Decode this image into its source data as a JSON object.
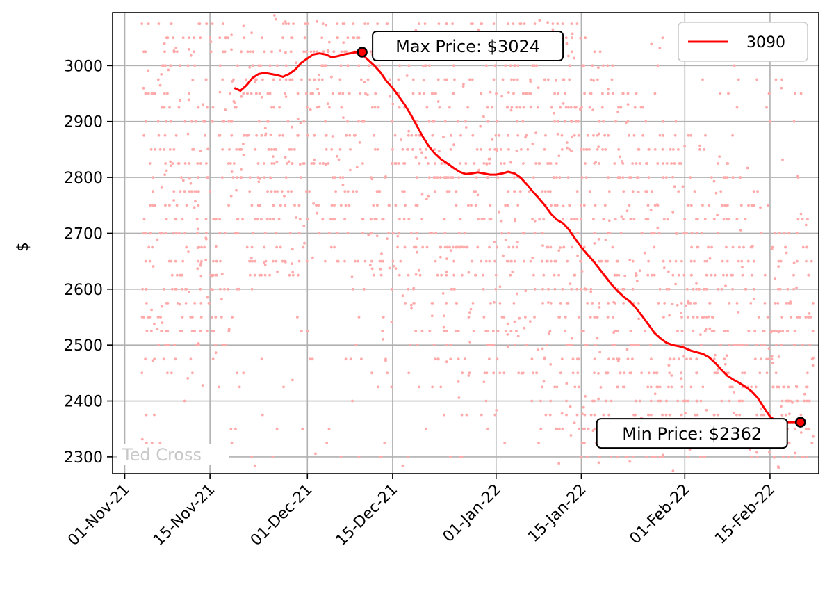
{
  "chart_data": {
    "type": "line",
    "ylabel": "$",
    "xlabel": "",
    "ylim": [
      2270,
      3095
    ],
    "xlim": [
      "2021-10-30",
      "2022-02-23"
    ],
    "x_ticks": [
      {
        "date": "2021-11-01",
        "label": "01-Nov-21"
      },
      {
        "date": "2021-11-15",
        "label": "15-Nov-21"
      },
      {
        "date": "2021-12-01",
        "label": "01-Dec-21"
      },
      {
        "date": "2021-12-15",
        "label": "15-Dec-21"
      },
      {
        "date": "2022-01-01",
        "label": "01-Jan-22"
      },
      {
        "date": "2022-01-15",
        "label": "15-Jan-22"
      },
      {
        "date": "2022-02-01",
        "label": "01-Feb-22"
      },
      {
        "date": "2022-02-15",
        "label": "15-Feb-22"
      }
    ],
    "y_ticks": [
      2300,
      2400,
      2500,
      2600,
      2700,
      2800,
      2900,
      3000
    ],
    "grid": true,
    "legend": {
      "placement": "top-right",
      "entries": [
        {
          "label": "3090",
          "color": "#ff0000"
        }
      ]
    },
    "watermark": "Ted Cross",
    "series": [
      {
        "name": "3090",
        "color": "#ff0000",
        "x": [
          "2021-11-19",
          "2021-11-20",
          "2021-11-21",
          "2021-11-22",
          "2021-11-23",
          "2021-11-24",
          "2021-11-25",
          "2021-11-26",
          "2021-11-27",
          "2021-11-28",
          "2021-11-29",
          "2021-11-30",
          "2021-12-01",
          "2021-12-02",
          "2021-12-03",
          "2021-12-04",
          "2021-12-05",
          "2021-12-06",
          "2021-12-07",
          "2021-12-08",
          "2021-12-09",
          "2021-12-10",
          "2021-12-11",
          "2021-12-12",
          "2021-12-13",
          "2021-12-14",
          "2021-12-15",
          "2021-12-16",
          "2021-12-17",
          "2021-12-18",
          "2021-12-19",
          "2021-12-20",
          "2021-12-21",
          "2021-12-22",
          "2021-12-23",
          "2021-12-24",
          "2021-12-25",
          "2021-12-26",
          "2021-12-27",
          "2021-12-28",
          "2021-12-29",
          "2021-12-30",
          "2021-12-31",
          "2022-01-01",
          "2022-01-02",
          "2022-01-03",
          "2022-01-04",
          "2022-01-05",
          "2022-01-06",
          "2022-01-07",
          "2022-01-08",
          "2022-01-09",
          "2022-01-10",
          "2022-01-11",
          "2022-01-12",
          "2022-01-13",
          "2022-01-14",
          "2022-01-15",
          "2022-01-16",
          "2022-01-17",
          "2022-01-18",
          "2022-01-19",
          "2022-01-20",
          "2022-01-21",
          "2022-01-22",
          "2022-01-23",
          "2022-01-24",
          "2022-01-25",
          "2022-01-26",
          "2022-01-27",
          "2022-01-28",
          "2022-01-29",
          "2022-01-30",
          "2022-01-31",
          "2022-02-01",
          "2022-02-02",
          "2022-02-03",
          "2022-02-04",
          "2022-02-05",
          "2022-02-06",
          "2022-02-07",
          "2022-02-08",
          "2022-02-09",
          "2022-02-10",
          "2022-02-11",
          "2022-02-12",
          "2022-02-13",
          "2022-02-14",
          "2022-02-15",
          "2022-02-16",
          "2022-02-17",
          "2022-02-18",
          "2022-02-19",
          "2022-02-20"
        ],
        "values": [
          2960,
          2955,
          2965,
          2978,
          2985,
          2987,
          2985,
          2983,
          2980,
          2985,
          2993,
          3005,
          3013,
          3020,
          3022,
          3020,
          3015,
          3017,
          3020,
          3022,
          3024,
          3020,
          3010,
          3000,
          2988,
          2972,
          2960,
          2945,
          2930,
          2912,
          2892,
          2872,
          2855,
          2842,
          2832,
          2825,
          2817,
          2810,
          2806,
          2807,
          2809,
          2807,
          2805,
          2805,
          2807,
          2810,
          2807,
          2800,
          2788,
          2775,
          2763,
          2750,
          2735,
          2724,
          2718,
          2706,
          2690,
          2675,
          2662,
          2650,
          2636,
          2622,
          2608,
          2596,
          2586,
          2578,
          2566,
          2552,
          2537,
          2522,
          2512,
          2504,
          2500,
          2498,
          2495,
          2490,
          2487,
          2484,
          2478,
          2468,
          2456,
          2445,
          2438,
          2432,
          2425,
          2417,
          2405,
          2388,
          2372,
          2364,
          2362,
          2362,
          2362,
          2362
        ]
      }
    ],
    "annotations": [
      {
        "text": "Max Price: $3024",
        "x": "2021-12-10",
        "y": 3024
      },
      {
        "text": "Min Price: $2362",
        "x": "2022-02-20",
        "y": 2362
      }
    ],
    "scatter_color": "#ffaaaa"
  }
}
